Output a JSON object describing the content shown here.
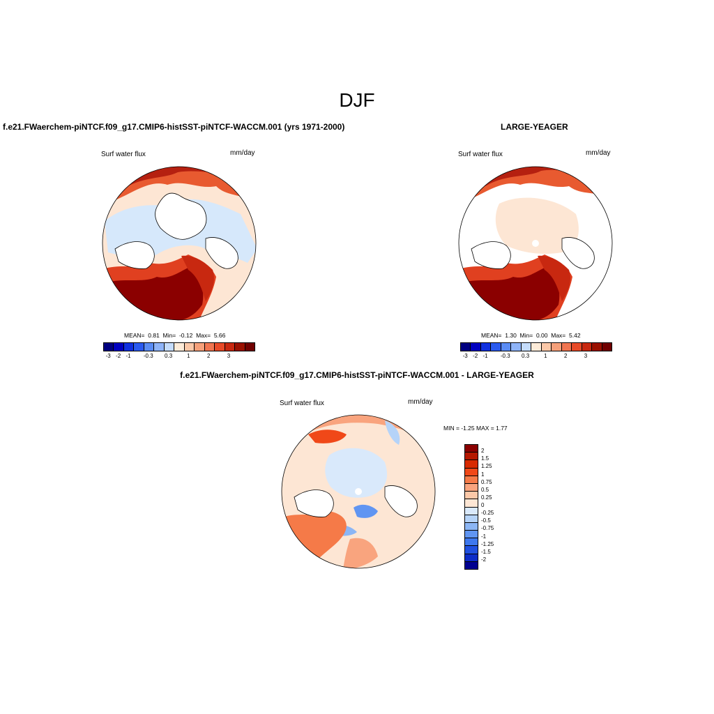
{
  "title": "DJF",
  "panels": [
    {
      "id": "test",
      "case_title": "f.e21.FWaerchem-piNTCF.f09_g17.CMIP6-histSST-piNTCF-WACCM.001 (yrs 1971-2000)",
      "variable": "Surf water flux",
      "units": "mm/day",
      "stats": {
        "mean_label": "MEAN=",
        "mean": "0.81",
        "min_label": "Min=",
        "min": "-0.12",
        "max_label": "Max=",
        "max": "5.66"
      }
    },
    {
      "id": "obs",
      "case_title": "LARGE-YEAGER",
      "variable": "Surf water flux",
      "units": "mm/day",
      "stats": {
        "mean_label": "MEAN=",
        "mean": "1.30",
        "min_label": "Min=",
        "min": "0.00",
        "max_label": "Max=",
        "max": "5.42"
      }
    },
    {
      "id": "diff",
      "case_title": "f.e21.FWaerchem-piNTCF.f09_g17.CMIP6-histSST-piNTCF-WACCM.001 - LARGE-YEAGER",
      "variable": "Surf water flux",
      "units": "mm/day",
      "minmax": "MIN =  -1.25 MAX =   1.77"
    }
  ],
  "colorbar_top": {
    "colors": [
      "#000080",
      "#0000c0",
      "#1030e0",
      "#2a5af0",
      "#5a8cf5",
      "#8fb4f8",
      "#c5dcfb",
      "#fdebd8",
      "#fbc8a8",
      "#f6a07a",
      "#f07550",
      "#e84a28",
      "#c82810",
      "#9a1000",
      "#700000"
    ],
    "ticks": [
      "-3",
      "-2",
      "-1",
      "-0.3",
      "0.3",
      "1",
      "2",
      "3"
    ]
  },
  "colorbar_diff": {
    "colors": [
      "#8b0000",
      "#b51800",
      "#d82a00",
      "#f04818",
      "#f57a48",
      "#f9a47e",
      "#fcc8a8",
      "#fde6d4",
      "#d9e9fb",
      "#b5d3f8",
      "#8cb6f5",
      "#6095f2",
      "#3e78ee",
      "#2050e0",
      "#0c2cc8",
      "#000090"
    ],
    "ticks": [
      "2",
      "1.5",
      "1.25",
      "1",
      "0.75",
      "0.5",
      "0.25",
      "0",
      "-0.25",
      "-0.5",
      "-0.75",
      "-1",
      "-1.25",
      "-1.5",
      "-2"
    ]
  }
}
